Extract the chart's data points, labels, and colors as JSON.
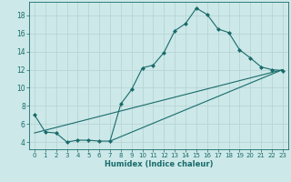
{
  "xlabel": "Humidex (Indice chaleur)",
  "background_color": "#cce8e8",
  "grid_color": "#b8d4d4",
  "line_color": "#1a6b6b",
  "xlim": [
    -0.5,
    23.5
  ],
  "ylim": [
    3.2,
    19.5
  ],
  "yticks": [
    4,
    6,
    8,
    10,
    12,
    14,
    16,
    18
  ],
  "xticks": [
    0,
    1,
    2,
    3,
    4,
    5,
    6,
    7,
    8,
    9,
    10,
    11,
    12,
    13,
    14,
    15,
    16,
    17,
    18,
    19,
    20,
    21,
    22,
    23
  ],
  "line1_x": [
    0,
    1,
    2,
    3,
    4,
    5,
    6,
    7,
    8,
    9,
    10,
    11,
    12,
    13,
    14,
    15,
    16,
    17,
    18,
    19,
    20,
    21,
    22,
    23
  ],
  "line1_y": [
    7.0,
    5.1,
    5.0,
    4.0,
    4.2,
    4.2,
    4.1,
    4.1,
    8.2,
    9.8,
    12.2,
    12.5,
    13.9,
    16.3,
    17.1,
    18.8,
    18.1,
    16.5,
    16.1,
    14.2,
    13.3,
    12.3,
    12.0,
    11.9
  ],
  "line2_x": [
    0,
    23
  ],
  "line2_y": [
    5.0,
    12.0
  ],
  "line3_x": [
    7,
    23
  ],
  "line3_y": [
    4.1,
    12.0
  ]
}
